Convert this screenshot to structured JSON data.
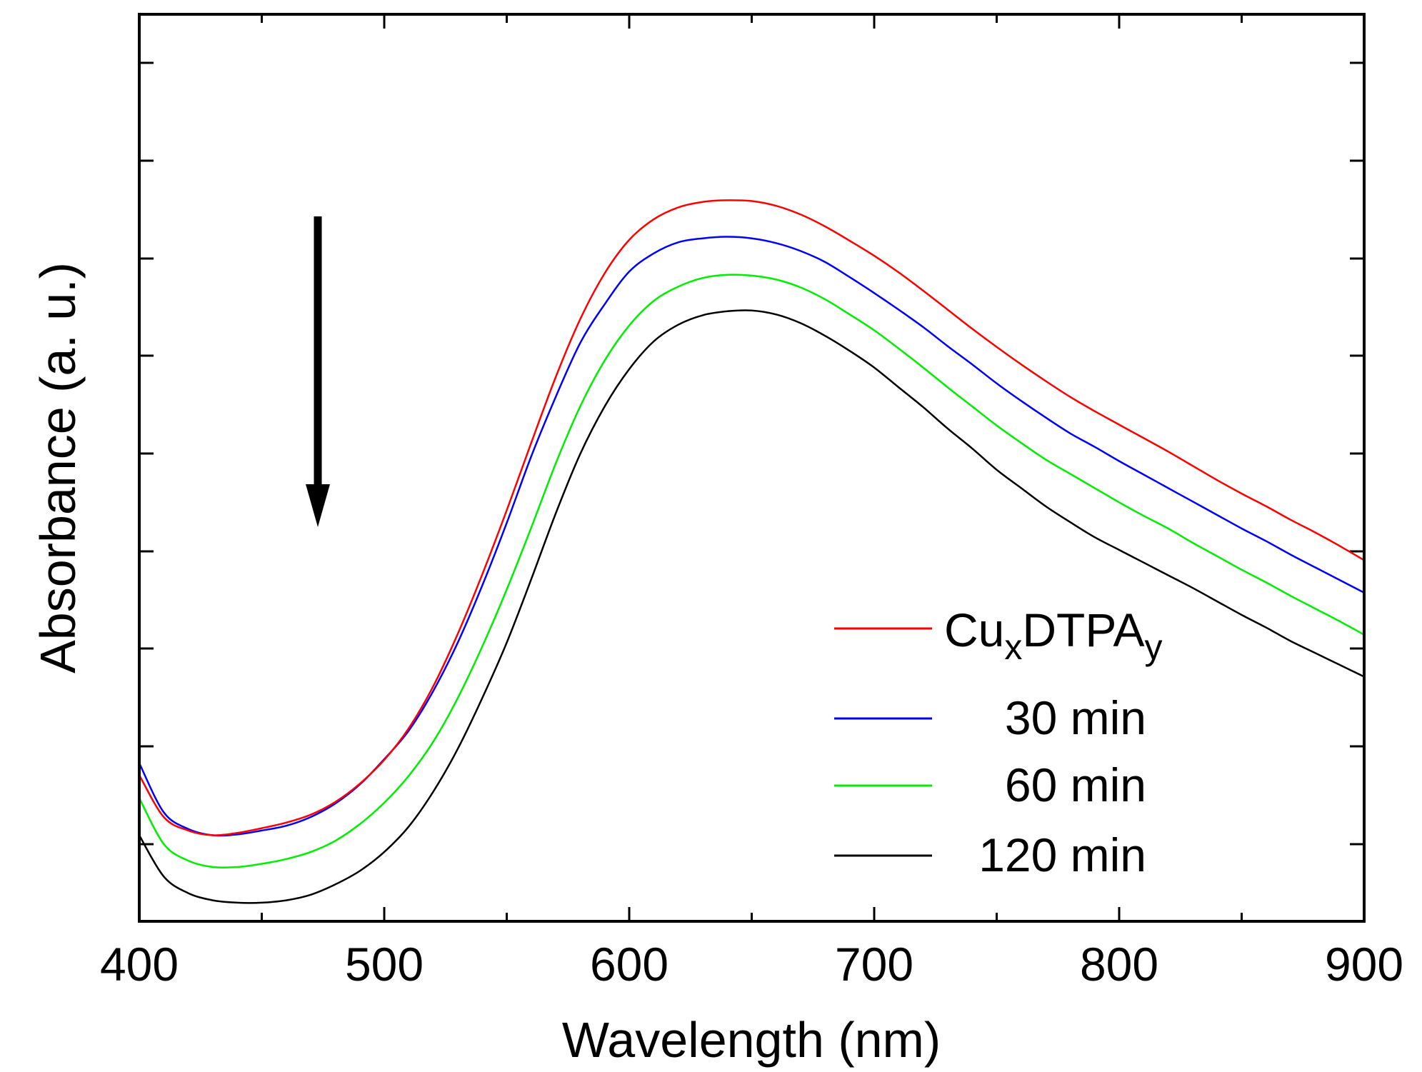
{
  "chart_data": {
    "type": "line",
    "title": "",
    "xlabel": "Wavelength (nm)",
    "ylabel": "Absorbance (a. u.)",
    "xlim": [
      400,
      900
    ],
    "ylim": [
      0,
      1
    ],
    "x_ticks": [
      400,
      500,
      600,
      700,
      800,
      900
    ],
    "x_tick_labels": [
      "400",
      "500",
      "600",
      "700",
      "800",
      "900"
    ],
    "y_tick_labels_shown": false,
    "grid": false,
    "legend_position": "bottom-right",
    "annotation": "downward arrow indicating decreasing absorbance with time",
    "x": [
      400,
      410,
      420,
      430,
      440,
      450,
      460,
      470,
      480,
      490,
      500,
      510,
      520,
      530,
      540,
      550,
      560,
      570,
      580,
      590,
      600,
      610,
      620,
      630,
      640,
      650,
      660,
      670,
      680,
      690,
      700,
      710,
      720,
      730,
      740,
      750,
      760,
      770,
      780,
      790,
      800,
      810,
      820,
      830,
      840,
      850,
      860,
      870,
      880,
      890,
      900
    ],
    "series": [
      {
        "name": "CuxDTPAy",
        "label_main": "Cu",
        "label_sub1": "x",
        "label_mid": "DTPA",
        "label_sub2": "y",
        "color": "#ff0000",
        "values": [
          0.171,
          0.118,
          0.101,
          0.095,
          0.098,
          0.104,
          0.111,
          0.121,
          0.137,
          0.16,
          0.19,
          0.23,
          0.283,
          0.349,
          0.424,
          0.505,
          0.59,
          0.673,
          0.746,
          0.804,
          0.846,
          0.872,
          0.887,
          0.894,
          0.896,
          0.895,
          0.889,
          0.878,
          0.863,
          0.845,
          0.826,
          0.805,
          0.782,
          0.758,
          0.734,
          0.711,
          0.689,
          0.668,
          0.648,
          0.63,
          0.613,
          0.596,
          0.579,
          0.561,
          0.543,
          0.526,
          0.51,
          0.493,
          0.477,
          0.46,
          0.442
        ]
      },
      {
        "name": "30 min",
        "color": "#0000ff",
        "values": [
          0.186,
          0.124,
          0.103,
          0.095,
          0.096,
          0.101,
          0.107,
          0.118,
          0.135,
          0.159,
          0.191,
          0.227,
          0.277,
          0.338,
          0.41,
          0.489,
          0.573,
          0.648,
          0.716,
          0.765,
          0.806,
          0.829,
          0.843,
          0.848,
          0.85,
          0.848,
          0.842,
          0.832,
          0.818,
          0.799,
          0.779,
          0.758,
          0.736,
          0.712,
          0.689,
          0.665,
          0.643,
          0.622,
          0.602,
          0.585,
          0.567,
          0.55,
          0.533,
          0.516,
          0.499,
          0.482,
          0.466,
          0.449,
          0.433,
          0.417,
          0.401
        ]
      },
      {
        "name": "60 min",
        "color": "#00ee00",
        "values": [
          0.142,
          0.084,
          0.063,
          0.055,
          0.055,
          0.059,
          0.065,
          0.074,
          0.088,
          0.109,
          0.136,
          0.17,
          0.213,
          0.268,
          0.333,
          0.405,
          0.483,
          0.564,
          0.636,
          0.694,
          0.738,
          0.769,
          0.787,
          0.798,
          0.802,
          0.801,
          0.796,
          0.786,
          0.771,
          0.752,
          0.732,
          0.709,
          0.685,
          0.66,
          0.636,
          0.612,
          0.59,
          0.569,
          0.551,
          0.533,
          0.515,
          0.498,
          0.482,
          0.464,
          0.447,
          0.43,
          0.414,
          0.397,
          0.381,
          0.365,
          0.348
        ]
      },
      {
        "name": "120 min",
        "color": "#000000",
        "values": [
          0.095,
          0.043,
          0.022,
          0.013,
          0.01,
          0.01,
          0.013,
          0.02,
          0.033,
          0.05,
          0.074,
          0.106,
          0.15,
          0.204,
          0.268,
          0.338,
          0.418,
          0.501,
          0.576,
          0.636,
          0.683,
          0.718,
          0.739,
          0.751,
          0.756,
          0.757,
          0.752,
          0.741,
          0.725,
          0.706,
          0.685,
          0.66,
          0.635,
          0.608,
          0.583,
          0.556,
          0.533,
          0.51,
          0.49,
          0.471,
          0.455,
          0.439,
          0.423,
          0.407,
          0.39,
          0.373,
          0.357,
          0.34,
          0.325,
          0.31,
          0.295
        ]
      }
    ]
  }
}
